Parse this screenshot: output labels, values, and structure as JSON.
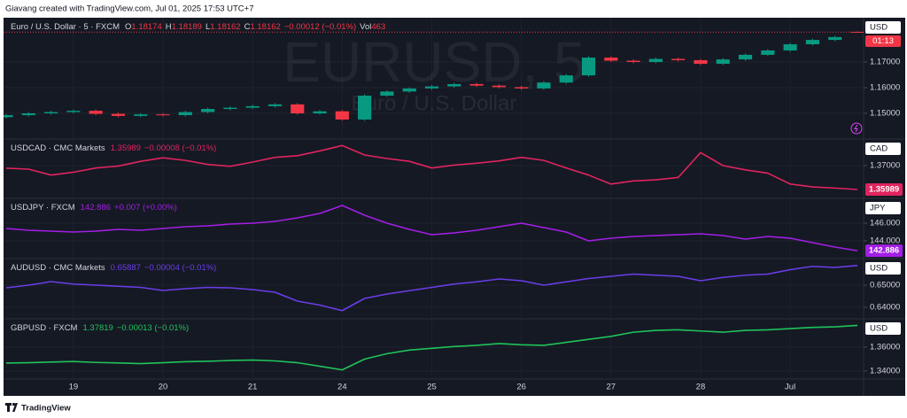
{
  "header": {
    "text": "Giavang created with TradingView.com, Jul 01, 2025 17:53 UTC+7"
  },
  "footer": {
    "brand": "TradingView"
  },
  "chart_data": [
    {
      "type": "candlestick",
      "name": "Euro / U.S. Dollar · 5 · FXCM",
      "watermark": "EURUSD, 5",
      "watermark_subtitle": "Euro / U.S. Dollar",
      "ohlc_prefixes": [
        "O",
        "H",
        "L",
        "C"
      ],
      "change": "−0.00012 (−0.01%)",
      "volume_label": "Vol",
      "volume": 463,
      "currency": "USD",
      "countdown": "01:13",
      "up_color": "#089981",
      "down_color": "#f23645",
      "open": [
        1.1485,
        1.1493,
        1.15,
        1.1505,
        1.151,
        1.1498,
        1.149,
        1.1496,
        1.1493,
        1.1505,
        1.1517,
        1.1522,
        1.1528,
        1.1535,
        1.15,
        1.1508,
        1.1476,
        1.1569,
        1.1585,
        1.1597,
        1.1605,
        1.1614,
        1.1608,
        1.1602,
        1.1597,
        1.162,
        1.1648,
        1.1717,
        1.1705,
        1.17,
        1.1712,
        1.1707,
        1.1693,
        1.171,
        1.1728,
        1.1745,
        1.1769,
        1.1786,
        1.18174
      ],
      "high": [
        1.1498,
        1.1505,
        1.151,
        1.1515,
        1.1515,
        1.1503,
        1.1501,
        1.1501,
        1.151,
        1.1522,
        1.1527,
        1.1533,
        1.154,
        1.154,
        1.1513,
        1.1513,
        1.1574,
        1.159,
        1.1602,
        1.161,
        1.1619,
        1.1619,
        1.1613,
        1.1607,
        1.1625,
        1.1653,
        1.1722,
        1.1722,
        1.171,
        1.1717,
        1.1717,
        1.1712,
        1.1715,
        1.1733,
        1.175,
        1.1774,
        1.1791,
        1.1802,
        1.18189
      ],
      "low": [
        1.148,
        1.1488,
        1.1495,
        1.15,
        1.1493,
        1.1485,
        1.1485,
        1.1488,
        1.1488,
        1.15,
        1.1512,
        1.1517,
        1.1523,
        1.1495,
        1.1495,
        1.1471,
        1.1471,
        1.1564,
        1.158,
        1.1592,
        1.16,
        1.1603,
        1.1597,
        1.1592,
        1.1592,
        1.1615,
        1.1643,
        1.17,
        1.1695,
        1.1695,
        1.1702,
        1.1688,
        1.1688,
        1.1705,
        1.1723,
        1.174,
        1.1764,
        1.1781,
        1.18162
      ],
      "close": [
        1.1493,
        1.15,
        1.1505,
        1.151,
        1.1498,
        1.149,
        1.1496,
        1.1493,
        1.1505,
        1.1517,
        1.1522,
        1.1528,
        1.1535,
        1.15,
        1.1508,
        1.1476,
        1.1569,
        1.1585,
        1.1597,
        1.1605,
        1.1614,
        1.1608,
        1.1602,
        1.1597,
        1.162,
        1.1648,
        1.1717,
        1.1705,
        1.17,
        1.1712,
        1.1707,
        1.1693,
        1.171,
        1.1728,
        1.1745,
        1.1769,
        1.1786,
        1.1797,
        1.18162
      ],
      "ylim": [
        1.14,
        1.18724
      ],
      "yticks": [
        {
          "value": 1.17,
          "label": "1.17000"
        },
        {
          "value": 1.16,
          "label": "1.16000"
        },
        {
          "value": 1.15,
          "label": "1.15000"
        }
      ],
      "grid": true
    },
    {
      "type": "line",
      "name": "USDCAD · CMC Markets",
      "change": "−0.00008 (−0.01%)",
      "currency": "CAD",
      "color": "#e0245e",
      "last_price_tag": true,
      "values": [
        1.3689,
        1.3685,
        1.366,
        1.3672,
        1.369,
        1.3698,
        1.3718,
        1.3733,
        1.3722,
        1.3705,
        1.3697,
        1.3715,
        1.3735,
        1.3742,
        1.3762,
        1.3785,
        1.3745,
        1.373,
        1.3718,
        1.369,
        1.3702,
        1.371,
        1.372,
        1.3735,
        1.3722,
        1.369,
        1.366,
        1.3622,
        1.3635,
        1.364,
        1.365,
        1.3755,
        1.37,
        1.3682,
        1.3668,
        1.3622,
        1.361,
        1.3605,
        1.35989
      ],
      "ylim": [
        1.35614,
        1.38124
      ],
      "yticks": [
        {
          "value": 1.37,
          "label": "1.37000"
        }
      ],
      "grid": true
    },
    {
      "type": "line",
      "name": "USDJPY · FXCM",
      "change": "+0.007 (+0.00%)",
      "currency": "JPY",
      "color": "#a31ee6",
      "last_price_tag": true,
      "values": [
        145.4,
        145.2,
        145.1,
        145.0,
        145.1,
        145.3,
        145.2,
        145.4,
        145.6,
        145.7,
        145.9,
        146.0,
        146.2,
        146.6,
        147.1,
        148.0,
        146.9,
        146.0,
        145.3,
        144.7,
        144.9,
        145.2,
        145.6,
        146.0,
        145.5,
        145.0,
        144.0,
        144.3,
        144.5,
        144.6,
        144.7,
        144.8,
        144.6,
        144.2,
        144.5,
        144.3,
        143.8,
        143.3,
        142.886
      ],
      "ylim": [
        142.0,
        148.8
      ],
      "yticks": [
        {
          "value": 146,
          "label": "146.000"
        },
        {
          "value": 144,
          "label": "144.000"
        }
      ],
      "grid": true
    },
    {
      "type": "line",
      "name": "AUDUSD · CMC Markets",
      "change": "−0.00004 (−0.01%)",
      "currency": "USD",
      "color": "#6a3de8",
      "last_price_tag": false,
      "values": [
        0.6488,
        0.65,
        0.6516,
        0.6505,
        0.65,
        0.6495,
        0.649,
        0.6476,
        0.6484,
        0.649,
        0.6488,
        0.648,
        0.6468,
        0.6428,
        0.641,
        0.6385,
        0.644,
        0.646,
        0.6475,
        0.649,
        0.6505,
        0.6515,
        0.6528,
        0.652,
        0.65,
        0.6515,
        0.653,
        0.654,
        0.655,
        0.6545,
        0.654,
        0.652,
        0.6535,
        0.6545,
        0.655,
        0.657,
        0.6585,
        0.658,
        0.65887
      ],
      "ylim": [
        0.6348,
        0.662
      ],
      "yticks": [
        {
          "value": 0.65,
          "label": "0.65000"
        },
        {
          "value": 0.64,
          "label": "0.64000"
        }
      ],
      "grid": true
    },
    {
      "type": "line",
      "name": "GBPUSD · FXCM",
      "change": "−0.00013 (−0.01%)",
      "currency": "USD",
      "color": "#1fc35a",
      "last_price_tag": false,
      "x": [
        null,
        null,
        null,
        "19",
        null,
        null,
        null,
        "20",
        null,
        null,
        null,
        "21",
        null,
        null,
        null,
        "24",
        null,
        null,
        null,
        "25",
        null,
        null,
        null,
        "26",
        null,
        null,
        null,
        "27",
        null,
        null,
        null,
        "28",
        null,
        null,
        null,
        "Jul",
        null,
        null,
        null
      ],
      "values": [
        1.3467,
        1.347,
        1.3475,
        1.348,
        1.3472,
        1.3468,
        1.3462,
        1.347,
        1.3478,
        1.3482,
        1.3488,
        1.3492,
        1.3485,
        1.347,
        1.344,
        1.341,
        1.35,
        1.3545,
        1.3575,
        1.359,
        1.3605,
        1.3615,
        1.363,
        1.362,
        1.3615,
        1.364,
        1.3665,
        1.369,
        1.3725,
        1.374,
        1.3745,
        1.3735,
        1.3725,
        1.374,
        1.3745,
        1.3755,
        1.3765,
        1.377,
        1.37819
      ],
      "ylim": [
        1.3333,
        1.3837
      ],
      "yticks": [
        {
          "value": 1.36,
          "label": "1.36000"
        },
        {
          "value": 1.34,
          "label": "1.34000"
        }
      ],
      "grid": true
    }
  ]
}
